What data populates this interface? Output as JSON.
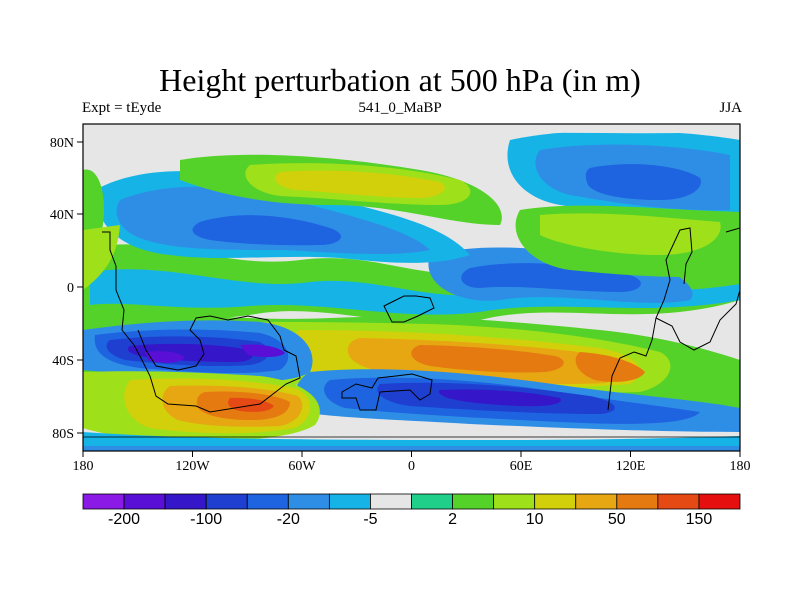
{
  "figure": {
    "title": "Height perturbation at 500 hPa (in m)",
    "left_label": "Expt = tEyde",
    "center_label": "541_0_MaBP",
    "right_label": "JJA"
  },
  "map": {
    "lon_range": [
      -180,
      180
    ],
    "lat_range": [
      -90,
      90
    ],
    "x_ticks": [
      "180",
      "120W",
      "60W",
      "0",
      "60E",
      "120E",
      "180"
    ],
    "y_ticks": [
      "80N",
      "40N",
      "0",
      "40S",
      "80S"
    ]
  },
  "colorbar": {
    "colors": [
      "#8b1ae6",
      "#5a0fd6",
      "#3516c8",
      "#1f3fd1",
      "#1e63e0",
      "#2e8ee6",
      "#16b4e6",
      "#e6e6e6",
      "#1fcf8a",
      "#54d22a",
      "#9ee01a",
      "#d2d00a",
      "#e6a712",
      "#e57a10",
      "#e64a14",
      "#e60f0f"
    ],
    "labels": [
      "-200",
      "-100",
      "-20",
      "-5",
      "2",
      "10",
      "50",
      "150"
    ]
  }
}
